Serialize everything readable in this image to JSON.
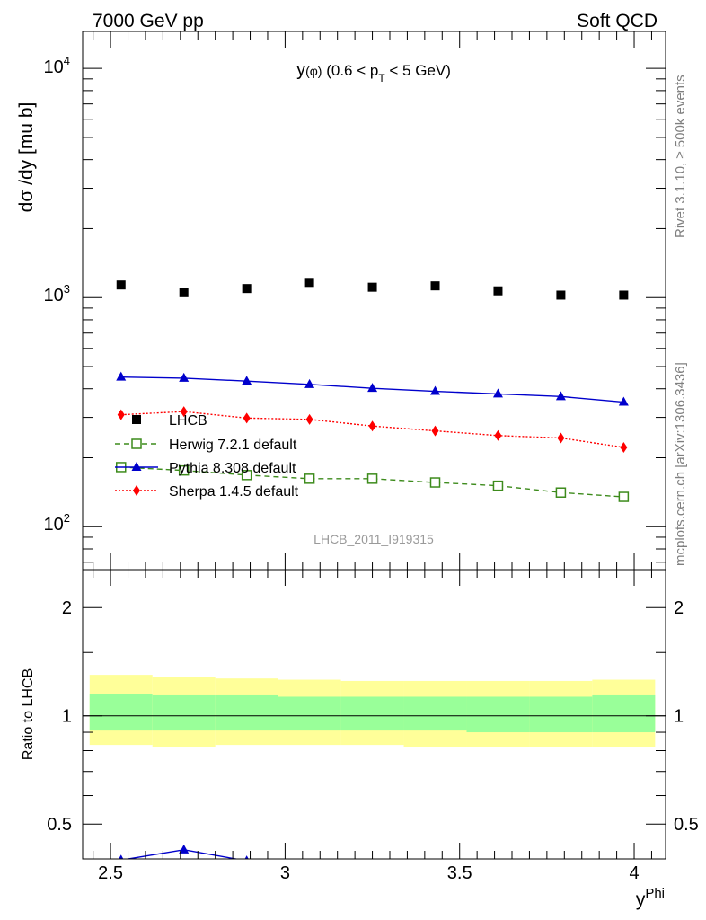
{
  "header": {
    "left": "7000 GeV pp",
    "right": "Soft QCD"
  },
  "side_labels": {
    "rivet": "Rivet 3.1.10, ≥ 500k events",
    "mcplots": "mcplots.cern.ch [arXiv:1306.3436]"
  },
  "chart_data": [
    {
      "type": "scatter",
      "title_parts": {
        "main": "y",
        "phi": "(φ)",
        "range_pre": "(0.6 < p",
        "sub": "T",
        "range_post": "< 5 GeV)"
      },
      "ylabel": "dσ /dy [mu b]",
      "yscale": "log",
      "ylim": [
        65,
        14500
      ],
      "xlim": [
        2.42,
        4.09
      ],
      "ytick_labels": {
        "y100": "10",
        "y100_exp": "2",
        "y1000": "10",
        "y1000_exp": "3",
        "y10000": "10",
        "y10000_exp": "4"
      },
      "watermark": "LHCB_2011_I919315",
      "x": [
        2.53,
        2.71,
        2.89,
        3.07,
        3.25,
        3.43,
        3.61,
        3.79,
        3.97
      ],
      "series": [
        {
          "name": "LHCB",
          "color": "#000000",
          "marker": "filled-square",
          "line": "none",
          "values": [
            1135,
            1050,
            1095,
            1165,
            1110,
            1125,
            1070,
            1025,
            1025
          ]
        },
        {
          "name": "Herwig 7.2.1 default",
          "color": "#3d8b1c",
          "marker": "open-square",
          "line": "dashed",
          "values": [
            182,
            176,
            168,
            162,
            162,
            156,
            151,
            141,
            135
          ]
        },
        {
          "name": "Pythia 8.308 default",
          "color": "#0000cc",
          "marker": "filled-triangle",
          "line": "solid",
          "values": [
            450,
            445,
            432,
            418,
            402,
            390,
            380,
            370,
            350
          ]
        },
        {
          "name": "Sherpa 1.4.5 default",
          "color": "#ff0000",
          "marker": "filled-diamond",
          "line": "dotted",
          "values": [
            308,
            318,
            298,
            294,
            275,
            262,
            250,
            244,
            222
          ]
        }
      ],
      "legend": "center-left"
    },
    {
      "type": "line",
      "ylabel": "Ratio to LHCB",
      "yscale": "log",
      "ylim": [
        0.4,
        2.55
      ],
      "xlim": [
        2.42,
        4.09
      ],
      "xlabel_main": "y",
      "xlabel_sup": "Phi",
      "xtick_labels": [
        "2.5",
        "3",
        "3.5",
        "4"
      ],
      "ytick_labels": [
        "0.5",
        "1",
        "2"
      ],
      "bin_edges": [
        2.44,
        2.62,
        2.8,
        2.98,
        3.16,
        3.34,
        3.52,
        3.7,
        3.88,
        4.06
      ],
      "band_outer": {
        "color": "#ffff99",
        "lower": [
          0.83,
          0.82,
          0.83,
          0.83,
          0.83,
          0.82,
          0.82,
          0.82,
          0.82
        ],
        "upper": [
          1.3,
          1.28,
          1.27,
          1.26,
          1.25,
          1.25,
          1.25,
          1.25,
          1.26
        ]
      },
      "band_inner": {
        "color": "#99ff99",
        "lower": [
          0.91,
          0.91,
          0.91,
          0.91,
          0.91,
          0.91,
          0.9,
          0.9,
          0.9
        ],
        "upper": [
          1.15,
          1.14,
          1.14,
          1.13,
          1.13,
          1.13,
          1.13,
          1.13,
          1.14
        ]
      },
      "reference": 1.0,
      "pythia_ratio": {
        "color": "#0000cc",
        "x": [
          2.53,
          2.71,
          2.89
        ],
        "values": [
          0.397,
          0.424,
          0.395
        ]
      }
    }
  ]
}
